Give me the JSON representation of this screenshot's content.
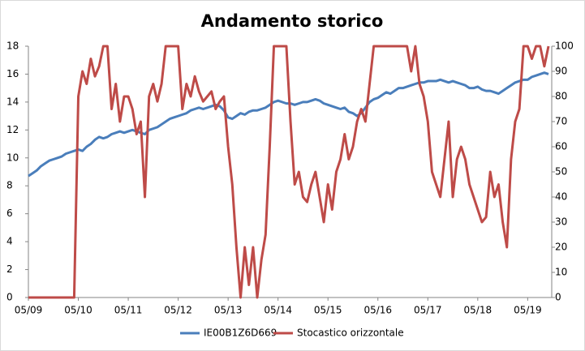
{
  "chart_data": {
    "type": "line",
    "title": "Andamento storico",
    "categories": [
      "05/09",
      "06/09",
      "07/09",
      "08/09",
      "09/09",
      "10/09",
      "11/09",
      "12/09",
      "01/10",
      "02/10",
      "03/10",
      "04/10",
      "05/10",
      "06/10",
      "07/10",
      "08/10",
      "09/10",
      "10/10",
      "11/10",
      "12/10",
      "01/11",
      "02/11",
      "03/11",
      "04/11",
      "05/11",
      "06/11",
      "07/11",
      "08/11",
      "09/11",
      "10/11",
      "11/11",
      "12/11",
      "01/12",
      "02/12",
      "03/12",
      "04/12",
      "05/12",
      "06/12",
      "07/12",
      "08/12",
      "09/12",
      "10/12",
      "11/12",
      "12/12",
      "01/13",
      "02/13",
      "03/13",
      "04/13",
      "05/13",
      "06/13",
      "07/13",
      "08/13",
      "09/13",
      "10/13",
      "11/13",
      "12/13",
      "01/14",
      "02/14",
      "03/14",
      "04/14",
      "05/14",
      "06/14",
      "07/14",
      "08/14",
      "09/14",
      "10/14",
      "11/14",
      "12/14",
      "01/15",
      "02/15",
      "03/15",
      "04/15",
      "05/15",
      "06/15",
      "07/15",
      "08/15",
      "09/15",
      "10/15",
      "11/15",
      "12/15",
      "01/16",
      "02/16",
      "03/16",
      "04/16",
      "05/16",
      "06/16",
      "07/16",
      "08/16",
      "09/16",
      "10/16",
      "11/16",
      "12/16",
      "01/17",
      "02/17",
      "03/17",
      "04/17",
      "05/17",
      "06/17",
      "07/17",
      "08/17",
      "09/17",
      "10/17",
      "11/17",
      "12/17",
      "01/18",
      "02/18",
      "03/18",
      "04/18",
      "05/18",
      "06/18",
      "07/18",
      "08/18",
      "09/18",
      "10/18",
      "11/18",
      "12/18",
      "01/19",
      "02/19",
      "03/19",
      "04/19",
      "05/19",
      "06/19",
      "07/19",
      "08/19",
      "09/19",
      "10/19"
    ],
    "series": [
      {
        "name": "IE00B1Z6D669",
        "color": "#4a7ebb",
        "axis": "y",
        "values": [
          8.7,
          8.9,
          9.1,
          9.4,
          9.6,
          9.8,
          9.9,
          10.0,
          10.1,
          10.3,
          10.4,
          10.5,
          10.6,
          10.5,
          10.8,
          11.0,
          11.3,
          11.5,
          11.4,
          11.5,
          11.7,
          11.8,
          11.9,
          11.8,
          11.9,
          12.0,
          11.9,
          11.8,
          11.7,
          12.0,
          12.1,
          12.2,
          12.4,
          12.6,
          12.8,
          12.9,
          13.0,
          13.1,
          13.2,
          13.4,
          13.5,
          13.6,
          13.5,
          13.6,
          13.7,
          13.8,
          13.7,
          13.4,
          12.9,
          12.8,
          13.0,
          13.2,
          13.1,
          13.3,
          13.4,
          13.4,
          13.5,
          13.6,
          13.8,
          14.0,
          14.1,
          14.0,
          13.9,
          13.9,
          13.8,
          13.9,
          14.0,
          14.0,
          14.1,
          14.2,
          14.1,
          13.9,
          13.8,
          13.7,
          13.6,
          13.5,
          13.6,
          13.3,
          13.2,
          13.0,
          13.2,
          13.6,
          14.0,
          14.2,
          14.3,
          14.5,
          14.7,
          14.6,
          14.8,
          15.0,
          15.0,
          15.1,
          15.2,
          15.3,
          15.4,
          15.4,
          15.5,
          15.5,
          15.5,
          15.6,
          15.5,
          15.4,
          15.5,
          15.4,
          15.3,
          15.2,
          15.0,
          15.0,
          15.1,
          14.9,
          14.8,
          14.8,
          14.7,
          14.6,
          14.8,
          15.0,
          15.2,
          15.4,
          15.5,
          15.6,
          15.6,
          15.8,
          15.9,
          16.0,
          16.1,
          16.0
        ]
      },
      {
        "name": "Stocastico orizzontale",
        "color": "#be4b48",
        "axis": "y2",
        "values": [
          0,
          0,
          0,
          0,
          0,
          0,
          0,
          0,
          0,
          0,
          0,
          0,
          80,
          90,
          85,
          95,
          88,
          92,
          100,
          100,
          75,
          85,
          70,
          80,
          80,
          75,
          65,
          70,
          40,
          80,
          85,
          78,
          85,
          100,
          100,
          100,
          100,
          75,
          85,
          80,
          88,
          82,
          78,
          80,
          82,
          75,
          78,
          80,
          60,
          45,
          20,
          0,
          20,
          5,
          20,
          0,
          15,
          25,
          60,
          100,
          100,
          100,
          100,
          70,
          45,
          50,
          40,
          38,
          45,
          50,
          40,
          30,
          45,
          35,
          50,
          55,
          65,
          55,
          60,
          70,
          75,
          70,
          85,
          100,
          100,
          100,
          100,
          100,
          100,
          100,
          100,
          100,
          90,
          100,
          85,
          80,
          70,
          50,
          45,
          40,
          55,
          70,
          40,
          55,
          60,
          55,
          45,
          40,
          35,
          30,
          32,
          50,
          40,
          45,
          30,
          20,
          55,
          70,
          75,
          100,
          100,
          95,
          100,
          100,
          92,
          100
        ]
      }
    ],
    "xticks": [
      "05/09",
      "05/10",
      "05/11",
      "05/12",
      "05/13",
      "05/14",
      "05/15",
      "05/16",
      "05/17",
      "05/18",
      "05/19"
    ],
    "ylim": [
      0,
      18
    ],
    "yticks": [
      0,
      2,
      4,
      6,
      8,
      10,
      12,
      14,
      16,
      18
    ],
    "y2lim": [
      0,
      100
    ],
    "y2ticks": [
      0,
      10,
      20,
      30,
      40,
      50,
      60,
      70,
      80,
      90,
      100
    ],
    "legend": "bottom"
  }
}
